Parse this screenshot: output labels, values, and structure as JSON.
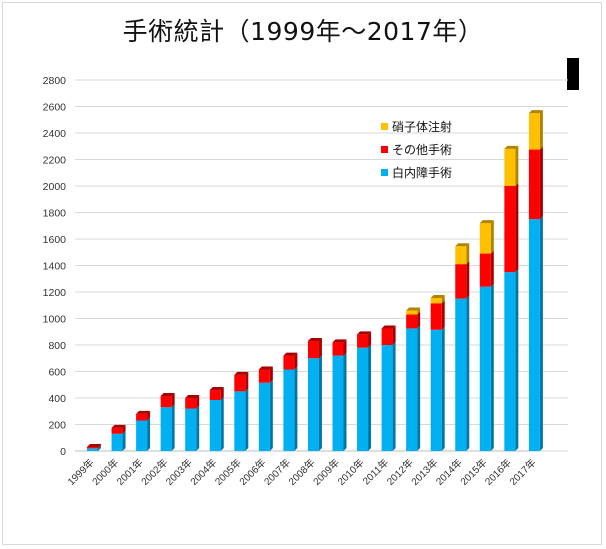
{
  "chart_data": {
    "type": "bar",
    "stacked": true,
    "title": "手術統計（1999年～2017年）",
    "categories": [
      "1999年",
      "2000年",
      "2001年",
      "2002年",
      "2003年",
      "2004年",
      "2005年",
      "2006年",
      "2007年",
      "2008年",
      "2009年",
      "2010年",
      "2011年",
      "2012年",
      "2013年",
      "2014年",
      "2015年",
      "2016年",
      "2017年"
    ],
    "series": [
      {
        "name": "白内障手術",
        "color": "#00b0f0",
        "values": [
          20,
          130,
          230,
          330,
          320,
          385,
          450,
          515,
          615,
          700,
          720,
          780,
          800,
          925,
          915,
          1150,
          1240,
          1350,
          1750
        ]
      },
      {
        "name": "その他手術",
        "color": "#ff0000",
        "values": [
          10,
          45,
          50,
          85,
          80,
          75,
          125,
          100,
          105,
          130,
          100,
          100,
          125,
          105,
          200,
          260,
          250,
          650,
          525
        ]
      },
      {
        "name": "硝子体注射",
        "color": "#ffc000",
        "values": [
          0,
          0,
          0,
          0,
          0,
          0,
          0,
          0,
          0,
          0,
          0,
          0,
          0,
          30,
          40,
          135,
          230,
          280,
          275
        ]
      }
    ],
    "ylim": [
      0,
      2800
    ],
    "yticks": [
      0,
      200,
      400,
      600,
      800,
      1000,
      1200,
      1400,
      1600,
      1800,
      2000,
      2200,
      2400,
      2600,
      2800
    ],
    "grid": true,
    "legend": "top-right"
  }
}
